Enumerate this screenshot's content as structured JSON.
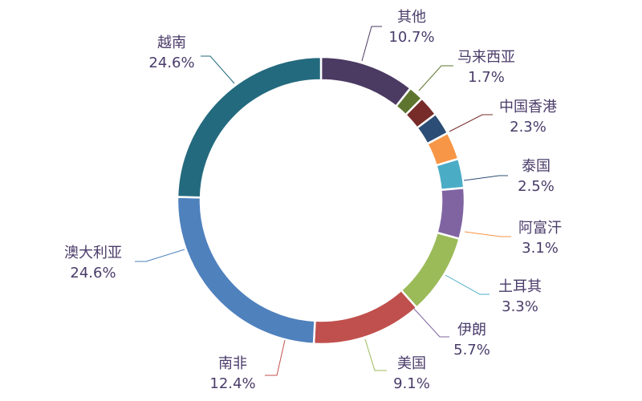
{
  "chart_data": {
    "type": "pie",
    "donut": true,
    "title": "",
    "legend": "none",
    "categories": [
      "其他",
      "马来西亚",
      "中国香港",
      "泰国",
      "阿富汗",
      "土耳其",
      "伊朗",
      "美国",
      "南非",
      "澳大利亚",
      "越南"
    ],
    "values": [
      10.7,
      1.7,
      2.3,
      2.5,
      3.1,
      3.3,
      5.7,
      9.1,
      12.4,
      24.6,
      24.6
    ],
    "labels": [
      "10.7%",
      "1.7%",
      "2.3%",
      "2.5%",
      "3.1%",
      "3.3%",
      "5.7%",
      "9.1%",
      "12.4%",
      "24.6%",
      "24.6%"
    ],
    "colors": [
      "#4b3a62",
      "#5e752f",
      "#772c2a",
      "#2c4d75",
      "#f79646",
      "#4bacc6",
      "#8064a2",
      "#9bbb59",
      "#c0504d",
      "#4f81bd",
      "#246a7e"
    ],
    "label_color": "#4a3c6a"
  }
}
